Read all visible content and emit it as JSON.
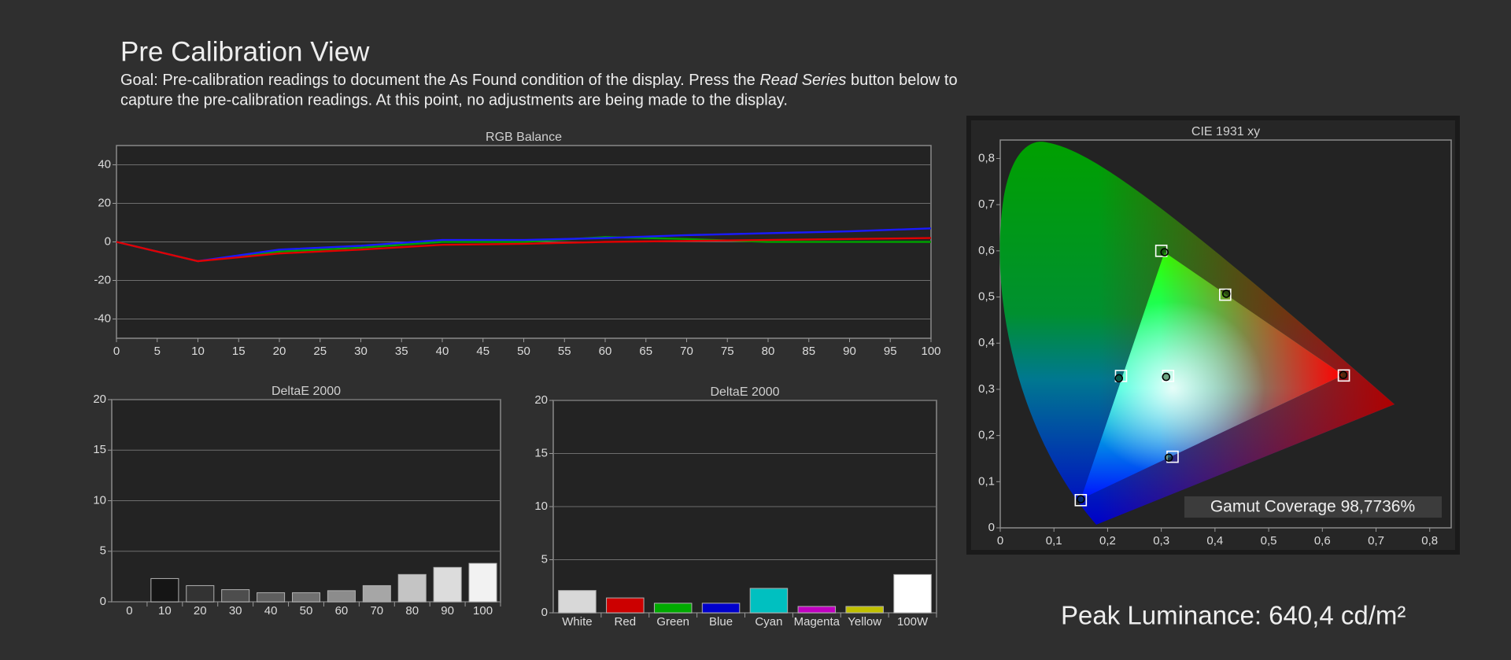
{
  "header": {
    "title": "Pre Calibration View",
    "goal_first_line": {
      "before": "Goal: Pre-calibration readings to document the As Found condition of the display. Press the ",
      "emphasis": "Read Series",
      "after": " button below to"
    },
    "goal_second_line": "capture the pre-calibration readings. At this point, no adjustments are being made to the display."
  },
  "chart_data": [
    {
      "type": "line",
      "title": "RGB Balance",
      "x": [
        0,
        10,
        20,
        30,
        40,
        50,
        60,
        70,
        80,
        90,
        100
      ],
      "xlim": [
        0,
        100
      ],
      "xticks": [
        0,
        5,
        10,
        15,
        20,
        25,
        30,
        35,
        40,
        45,
        50,
        55,
        60,
        65,
        70,
        75,
        80,
        85,
        90,
        95,
        100
      ],
      "ylim": [
        -50,
        50
      ],
      "yticks": [
        -40,
        -20,
        0,
        20,
        40
      ],
      "grid": true,
      "series": [
        {
          "color": "#00a000",
          "values": [
            0,
            -10,
            -5,
            -3,
            0,
            0,
            2.5,
            1.5,
            0,
            0,
            0
          ]
        },
        {
          "color": "#1a1aff",
          "values": [
            0,
            -10,
            -4,
            -2,
            1,
            1,
            2,
            3.5,
            4.5,
            5.5,
            7
          ]
        },
        {
          "color": "#e00000",
          "values": [
            0,
            -10,
            -6,
            -4,
            -1.5,
            -1,
            0,
            0.5,
            1,
            1.5,
            2
          ]
        }
      ]
    },
    {
      "type": "bar",
      "title": "DeltaE 2000",
      "categories": [
        "0",
        "10",
        "20",
        "30",
        "40",
        "50",
        "60",
        "70",
        "80",
        "90",
        "100"
      ],
      "values": [
        0,
        2.3,
        1.6,
        1.2,
        0.9,
        0.9,
        1.1,
        1.6,
        2.7,
        3.4,
        3.8
      ],
      "colors": [
        "#000000",
        "#151515",
        "#333333",
        "#4d4d4d",
        "#5e5e5e",
        "#707070",
        "#8c8c8c",
        "#a6a6a6",
        "#c4c4c4",
        "#dcdcdc",
        "#f2f2f2"
      ],
      "ylim": [
        0,
        20
      ],
      "yticks": [
        0,
        5,
        10,
        15,
        20
      ],
      "grid": true
    },
    {
      "type": "bar",
      "title": "DeltaE 2000",
      "categories": [
        "White",
        "Red",
        "Green",
        "Blue",
        "Cyan",
        "Magenta",
        "Yellow",
        "100W"
      ],
      "values": [
        2.1,
        1.4,
        0.9,
        0.9,
        2.3,
        0.6,
        0.6,
        3.6
      ],
      "colors": [
        "#d8d8d8",
        "#cc0000",
        "#00aa00",
        "#0000cc",
        "#00c0c0",
        "#c000c0",
        "#c0c000",
        "#ffffff"
      ],
      "ylim": [
        0,
        20
      ],
      "yticks": [
        0,
        5,
        10,
        15,
        20
      ],
      "grid": true
    },
    {
      "type": "scatter",
      "title": "CIE 1931 xy",
      "xlim": [
        0,
        0.84
      ],
      "ylim": [
        0,
        0.84
      ],
      "grid": false,
      "xticks": [
        0,
        {
          "value": 0.1,
          "label": "0,1"
        },
        {
          "value": 0.2,
          "label": "0,2"
        },
        {
          "value": 0.3,
          "label": "0,3"
        },
        {
          "value": 0.4,
          "label": "0,4"
        },
        {
          "value": 0.5,
          "label": "0,5"
        },
        {
          "value": 0.6,
          "label": "0,6"
        },
        {
          "value": 0.7,
          "label": "0,7"
        },
        {
          "value": 0.8,
          "label": "0,8"
        }
      ],
      "yticks": [
        0,
        {
          "value": 0.1,
          "label": "0,1"
        },
        {
          "value": 0.2,
          "label": "0,2"
        },
        {
          "value": 0.3,
          "label": "0,3"
        },
        {
          "value": 0.4,
          "label": "0,4"
        },
        {
          "value": 0.5,
          "label": "0,5"
        },
        {
          "value": 0.6,
          "label": "0,6"
        },
        {
          "value": 0.7,
          "label": "0,7"
        },
        {
          "value": 0.8,
          "label": "0,8"
        }
      ],
      "series": [
        {
          "marker": "square",
          "color": "#ffffff",
          "x": [
            0.64,
            0.3,
            0.15,
            0.3127,
            0.225,
            0.321,
            0.419
          ],
          "y": [
            0.33,
            0.6,
            0.06,
            0.329,
            0.329,
            0.154,
            0.505
          ]
        },
        {
          "marker": "circle",
          "color": "#000000",
          "x": [
            0.639,
            0.306,
            0.15,
            0.309,
            0.221,
            0.314,
            0.421
          ],
          "y": [
            0.331,
            0.597,
            0.062,
            0.327,
            0.324,
            0.152,
            0.507
          ]
        }
      ],
      "annotation": "Gamut Coverage 98,7736%"
    }
  ],
  "peak_luminance": "Peak Luminance: 640,4 cd/m²"
}
